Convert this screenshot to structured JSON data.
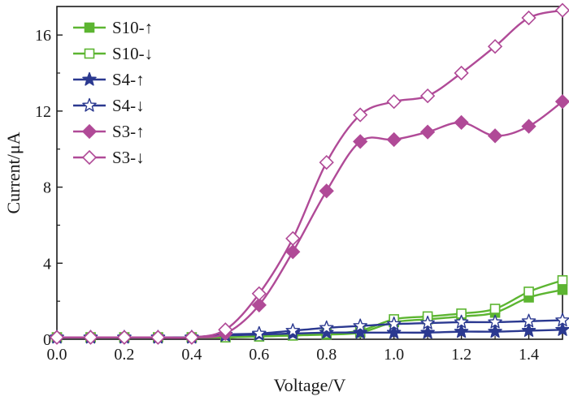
{
  "chart_data": {
    "type": "line",
    "title": "",
    "xlabel": "Voltage/V",
    "ylabel": "Current/μA",
    "xlim": [
      0.0,
      1.5
    ],
    "ylim": [
      0,
      17.5
    ],
    "xticks": [
      0.0,
      0.2,
      0.4,
      0.6,
      0.8,
      1.0,
      1.2,
      1.4
    ],
    "xtick_labels": [
      "0.0",
      "0.2",
      "0.4",
      "0.6",
      "0.8",
      "1.0",
      "1.2",
      "1.4"
    ],
    "yticks": [
      0,
      4,
      8,
      12,
      16
    ],
    "ytick_labels": [
      "0",
      "4",
      "8",
      "12",
      "16"
    ],
    "grid": false,
    "legend_position": "top-left",
    "x": [
      0.0,
      0.1,
      0.2,
      0.3,
      0.4,
      0.5,
      0.6,
      0.7,
      0.8,
      0.9,
      1.0,
      1.1,
      1.2,
      1.3,
      1.4,
      1.5
    ],
    "series": [
      {
        "name": "S10-↑",
        "color": "#5cb531",
        "marker": "square",
        "filled": true,
        "values": [
          0.1,
          0.1,
          0.1,
          0.1,
          0.1,
          0.1,
          0.15,
          0.2,
          0.25,
          0.35,
          0.9,
          1.05,
          1.2,
          1.4,
          2.2,
          2.6
        ]
      },
      {
        "name": "S10-↓",
        "color": "#5cb531",
        "marker": "square",
        "filled": false,
        "values": [
          0.1,
          0.1,
          0.1,
          0.1,
          0.1,
          0.1,
          0.15,
          0.2,
          0.3,
          0.45,
          1.05,
          1.2,
          1.35,
          1.6,
          2.5,
          3.1
        ]
      },
      {
        "name": "S4-↑",
        "color": "#2b3990",
        "marker": "star",
        "filled": true,
        "values": [
          0.1,
          0.1,
          0.1,
          0.1,
          0.1,
          0.2,
          0.25,
          0.3,
          0.35,
          0.35,
          0.35,
          0.35,
          0.4,
          0.4,
          0.45,
          0.5
        ]
      },
      {
        "name": "S4-↓",
        "color": "#2b3990",
        "marker": "star",
        "filled": false,
        "values": [
          0.1,
          0.1,
          0.1,
          0.1,
          0.1,
          0.25,
          0.3,
          0.45,
          0.6,
          0.7,
          0.8,
          0.85,
          0.9,
          0.9,
          0.95,
          1.0
        ]
      },
      {
        "name": "S3-↑",
        "color": "#b04a97",
        "marker": "diamond",
        "filled": true,
        "values": [
          0.1,
          0.1,
          0.1,
          0.1,
          0.1,
          0.3,
          1.8,
          4.6,
          7.8,
          10.4,
          10.5,
          10.9,
          11.4,
          10.7,
          11.2,
          12.5
        ]
      },
      {
        "name": "S3-↓",
        "color": "#b04a97",
        "marker": "diamond",
        "filled": false,
        "values": [
          0.1,
          0.1,
          0.1,
          0.1,
          0.1,
          0.5,
          2.4,
          5.3,
          9.3,
          11.8,
          12.5,
          12.8,
          14.0,
          15.4,
          16.9,
          17.3
        ]
      }
    ]
  }
}
